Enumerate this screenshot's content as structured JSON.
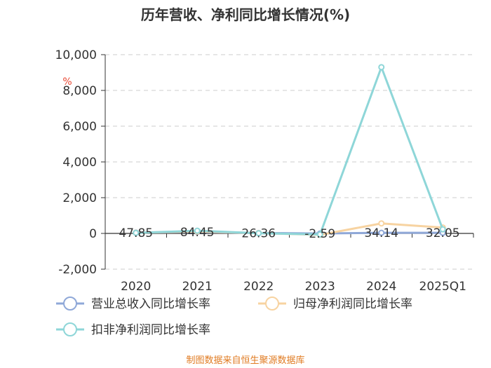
{
  "chart_data": {
    "type": "line",
    "title": "历年营收、净利同比增长情况(%)",
    "unit_label": "%",
    "categories": [
      "2020",
      "2021",
      "2022",
      "2023",
      "2024",
      "2025Q1"
    ],
    "ylim": [
      -2000,
      10000
    ],
    "yticks": [
      -2000,
      0,
      2000,
      4000,
      6000,
      8000,
      10000
    ],
    "ytick_labels": [
      "-2,000",
      "0",
      "2,000",
      "4,000",
      "6,000",
      "8,000",
      "10,000"
    ],
    "grid": true,
    "legend_position": "bottom-left",
    "series": [
      {
        "name": "营业总收入同比增长率",
        "color": "#8fa8d8",
        "values": [
          47.85,
          84.45,
          26.36,
          -2.59,
          34.14,
          32.05
        ]
      },
      {
        "name": "归母净利润同比增长率",
        "color": "#f7d3a1",
        "values": [
          40,
          110,
          20,
          -80,
          560,
          330
        ]
      },
      {
        "name": "扣非净利润同比增长率",
        "color": "#8ed6d8",
        "values": [
          30,
          150,
          10,
          -60,
          9300,
          230
        ]
      }
    ],
    "data_labels": [
      "47.85",
      "84.45",
      "26.36",
      "-2.59",
      "34.14",
      "32.05"
    ]
  },
  "footer": {
    "source": "制图数据来自恒生聚源数据库"
  }
}
